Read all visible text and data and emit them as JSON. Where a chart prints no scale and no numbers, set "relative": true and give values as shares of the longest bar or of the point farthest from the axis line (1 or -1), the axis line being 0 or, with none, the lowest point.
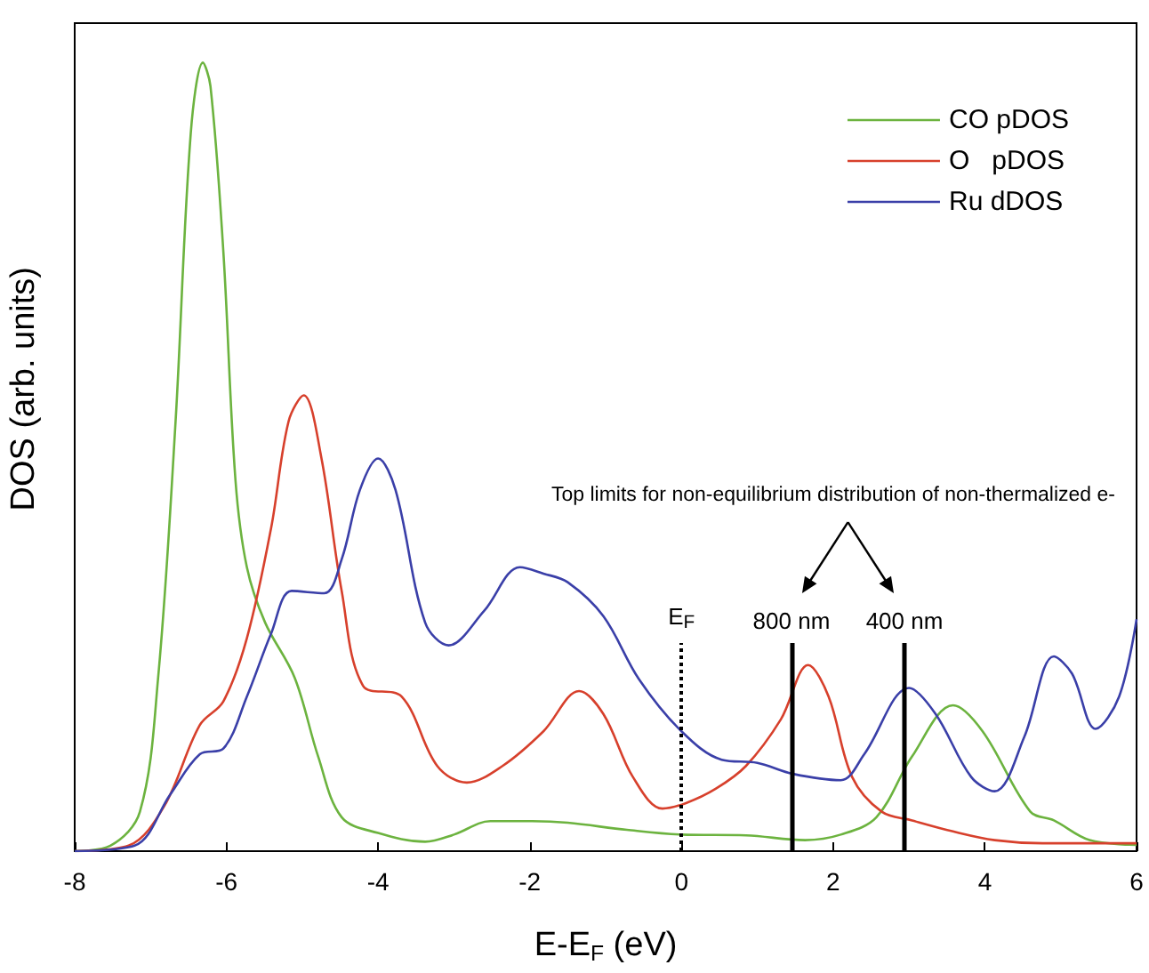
{
  "chart_data": {
    "type": "line",
    "relative": true,
    "xlabel": "E-E$_{F}$ (eV)",
    "ylabel": "DOS (arb. units)",
    "xlim": [
      -8,
      6
    ],
    "xticks": [
      -8,
      -6,
      -4,
      -2,
      0,
      2,
      4,
      6
    ],
    "legend": "top right",
    "grid": false,
    "marker": "none",
    "line_style": "solid",
    "annotations": [
      "Top limits for non-equilibrium distribution of non-thermalized e-"
    ],
    "ref_lines": [
      {
        "axis": "x",
        "value": 0,
        "label": "E$_{F}$",
        "line_style": "dotted",
        "color": "#000000"
      },
      {
        "axis": "x",
        "value": 1.45,
        "label": "800 nm",
        "line_style": "solid",
        "color": "#000000"
      },
      {
        "axis": "x",
        "value": 2.94,
        "label": "400 nm",
        "line_style": "solid",
        "color": "#000000"
      }
    ],
    "series": [
      {
        "name": "CO pDOS",
        "color": "#6cb33f",
        "x": [
          -8,
          -7.53,
          -7.14,
          -6.9,
          -6.67,
          -6.47,
          -6.31,
          -6.21,
          -6.04,
          -5.88,
          -5.73,
          -5.49,
          -5.1,
          -4.79,
          -4.48,
          -4,
          -3.38,
          -3,
          -2.52,
          -1.97,
          -1.5,
          -0.72,
          0,
          0.85,
          1.63,
          2.1,
          2.57,
          3.04,
          3.58,
          3.97,
          4.6,
          4.91,
          5.38,
          6
        ],
        "values": [
          0,
          0.007,
          0.05,
          0.22,
          0.545,
          0.91,
          1,
          0.97,
          0.76,
          0.47,
          0.36,
          0.29,
          0.22,
          0.12,
          0.043,
          0.023,
          0.012,
          0.021,
          0.038,
          0.038,
          0.036,
          0.027,
          0.021,
          0.02,
          0.014,
          0.021,
          0.043,
          0.12,
          0.185,
          0.152,
          0.05,
          0.039,
          0.014,
          0.008
        ]
      },
      {
        "name": "O   pDOS",
        "color": "#d7402c",
        "x": [
          -8,
          -7.29,
          -6.82,
          -6.35,
          -6.04,
          -5.73,
          -5.41,
          -5.18,
          -4.98,
          -4.75,
          -4.48,
          -4.2,
          -3.69,
          -3.22,
          -2.83,
          -2.36,
          -1.82,
          -1.35,
          -1.03,
          -0.64,
          -0.25,
          0.06,
          0.45,
          0.85,
          1.31,
          1.67,
          1.94,
          2.25,
          2.64,
          3.04,
          3.58,
          4.13,
          4.76,
          6
        ],
        "values": [
          0,
          0.007,
          0.057,
          0.16,
          0.19,
          0.27,
          0.41,
          0.545,
          0.578,
          0.5,
          0.33,
          0.21,
          0.196,
          0.108,
          0.087,
          0.108,
          0.152,
          0.203,
          0.174,
          0.094,
          0.054,
          0.061,
          0.079,
          0.108,
          0.167,
          0.236,
          0.196,
          0.094,
          0.05,
          0.039,
          0.025,
          0.014,
          0.01,
          0.01
        ]
      },
      {
        "name": "Ru dDOS",
        "color": "#3a3fa8",
        "x": [
          -8,
          -7.21,
          -6.74,
          -6.35,
          -6.04,
          -5.73,
          -5.41,
          -5.14,
          -4.71,
          -4.48,
          -4.24,
          -4,
          -3.77,
          -3.38,
          -3.07,
          -2.6,
          -2.13,
          -1.82,
          -1.5,
          -1.03,
          -0.56,
          0,
          0.53,
          1,
          1.47,
          2.1,
          2.41,
          3,
          3.35,
          3.82,
          4.13,
          4.52,
          4.91,
          5.15,
          5.46,
          5.77,
          6
        ],
        "values": [
          0,
          0.007,
          0.072,
          0.123,
          0.13,
          0.196,
          0.276,
          0.33,
          0.327,
          0.37,
          0.458,
          0.498,
          0.458,
          0.29,
          0.261,
          0.305,
          0.36,
          0.352,
          0.341,
          0.298,
          0.218,
          0.152,
          0.116,
          0.112,
          0.098,
          0.09,
          0.123,
          0.207,
          0.174,
          0.094,
          0.076,
          0.145,
          0.247,
          0.225,
          0.155,
          0.196,
          0.294
        ]
      }
    ]
  }
}
